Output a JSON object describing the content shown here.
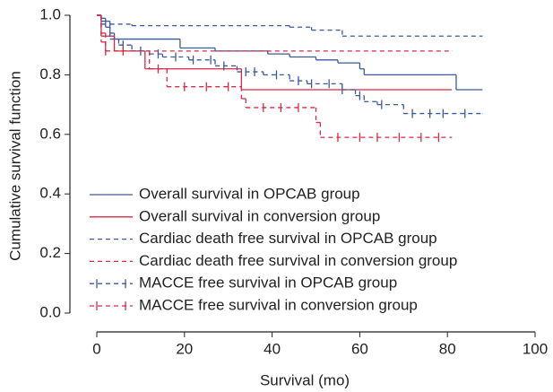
{
  "chart_data": {
    "type": "step",
    "xlabel": "Survival (mo)",
    "ylabel": "Cumulative survival function",
    "xlim": [
      0,
      100
    ],
    "ylim": [
      0,
      1
    ],
    "xticks": [
      0,
      20,
      40,
      60,
      80,
      100
    ],
    "yticks": [
      {
        "value": 0,
        "label": "0.0"
      },
      {
        "value": 0.2,
        "label": "0.2"
      },
      {
        "value": 0.4,
        "label": "0.4"
      },
      {
        "value": 0.6,
        "label": "0.6"
      },
      {
        "value": 0.8,
        "label": "0.8"
      },
      {
        "value": 1,
        "label": "1.0"
      }
    ],
    "legend": "lower left",
    "series": [
      {
        "name": "Overall survival in OPCAB group",
        "color": "#3a5a9c",
        "dash": false,
        "x": [
          0,
          1,
          2,
          3,
          4,
          19,
          27,
          39,
          44,
          50,
          55,
          60,
          61,
          82,
          88
        ],
        "values": [
          1,
          0.98,
          0.96,
          0.94,
          0.92,
          0.89,
          0.88,
          0.87,
          0.86,
          0.85,
          0.84,
          0.82,
          0.8,
          0.75,
          0.75
        ]
      },
      {
        "name": "Overall survival in conversion group",
        "color": "#d62a45",
        "dash": false,
        "x": [
          0,
          1,
          4,
          11,
          33,
          81
        ],
        "values": [
          1,
          0.93,
          0.88,
          0.82,
          0.75,
          0.75
        ]
      },
      {
        "name": "Cardiac death free survival in OPCAB group",
        "color": "#3a5a9c",
        "dash": true,
        "x": [
          0,
          1,
          2,
          3,
          8,
          44,
          49,
          56,
          88
        ],
        "values": [
          1,
          0.99,
          0.98,
          0.97,
          0.965,
          0.96,
          0.95,
          0.93,
          0.93
        ]
      },
      {
        "name": "Cardiac death free survival in conversion group",
        "color": "#d62a45",
        "dash": true,
        "x": [
          0,
          1,
          2,
          81
        ],
        "values": [
          1,
          0.94,
          0.88,
          0.88
        ]
      },
      {
        "name": "MACCE free survival in OPCAB group",
        "color": "#3a5a9c",
        "dash": true,
        "x": [
          0,
          1,
          3,
          5,
          8,
          12,
          15,
          21,
          27,
          32,
          38,
          44,
          48,
          56,
          59,
          61,
          64,
          70,
          88
        ],
        "values": [
          1,
          0.97,
          0.92,
          0.9,
          0.88,
          0.87,
          0.86,
          0.85,
          0.83,
          0.81,
          0.8,
          0.78,
          0.77,
          0.75,
          0.73,
          0.71,
          0.7,
          0.67,
          0.67
        ],
        "censored": [
          6,
          10,
          14,
          18,
          22,
          26,
          29,
          34,
          36,
          41,
          46,
          49,
          53,
          56,
          60,
          65,
          72,
          76,
          79,
          84
        ]
      },
      {
        "name": "MACCE free survival in conversion group",
        "color": "#d62a45",
        "dash": true,
        "x": [
          0,
          1,
          2,
          12,
          16,
          33,
          34,
          50,
          51,
          81
        ],
        "values": [
          1,
          0.91,
          0.88,
          0.82,
          0.76,
          0.72,
          0.69,
          0.64,
          0.59,
          0.59
        ],
        "censored": [
          2,
          6,
          14,
          20,
          25,
          30,
          38,
          42,
          46,
          55,
          60,
          64,
          69,
          74,
          78
        ]
      }
    ]
  }
}
